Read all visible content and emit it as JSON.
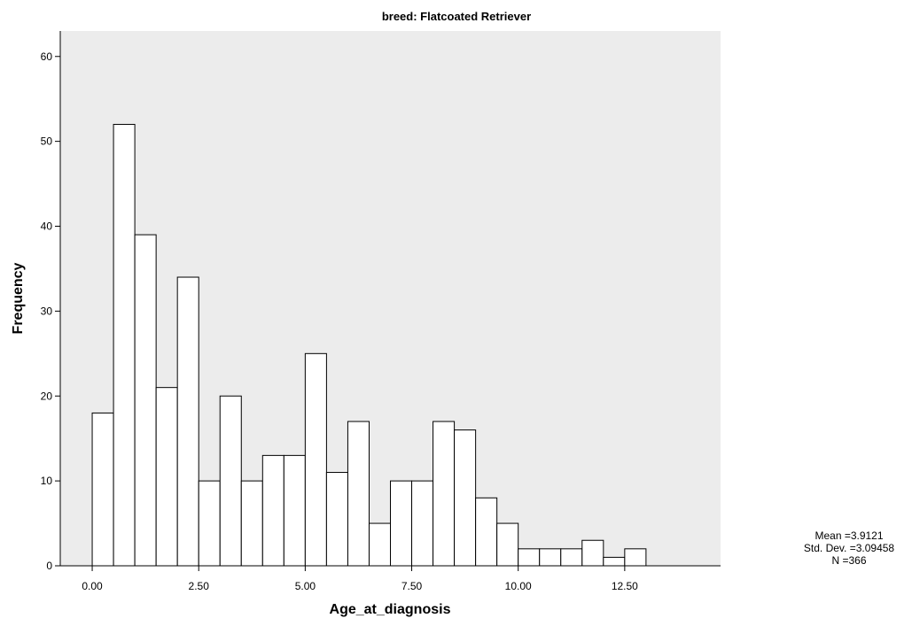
{
  "chart_data": {
    "type": "bar",
    "title": "breed: Flatcoated Retriever",
    "xlabel": "Age_at_diagnosis",
    "ylabel": "Frequency",
    "bin_width": 0.5,
    "bin_start": 0,
    "values": [
      18,
      52,
      39,
      21,
      34,
      10,
      20,
      10,
      13,
      13,
      25,
      11,
      17,
      5,
      10,
      10,
      17,
      16,
      8,
      5,
      2,
      2,
      2,
      3,
      1,
      2
    ],
    "xlim": [
      -0.75,
      14.75
    ],
    "ylim": [
      0,
      63
    ],
    "x_ticks": [
      {
        "value": 0,
        "label": "0.00"
      },
      {
        "value": 2.5,
        "label": "2.50"
      },
      {
        "value": 5,
        "label": "5.00"
      },
      {
        "value": 7.5,
        "label": "7.50"
      },
      {
        "value": 10,
        "label": "10.00"
      },
      {
        "value": 12.5,
        "label": "12.50"
      }
    ],
    "y_ticks": [
      {
        "value": 0,
        "label": "0"
      },
      {
        "value": 10,
        "label": "10"
      },
      {
        "value": 20,
        "label": "20"
      },
      {
        "value": 30,
        "label": "30"
      },
      {
        "value": 40,
        "label": "40"
      },
      {
        "value": 50,
        "label": "50"
      },
      {
        "value": 60,
        "label": "60"
      }
    ],
    "stats": {
      "mean": "Mean =3.9121",
      "std_dev": "Std. Dev. =3.09458",
      "n": "N =366"
    },
    "plot_background": "#ececec",
    "bar_fill": "#ffffff",
    "bar_stroke": "#000000",
    "grid": false,
    "legend": "none"
  }
}
